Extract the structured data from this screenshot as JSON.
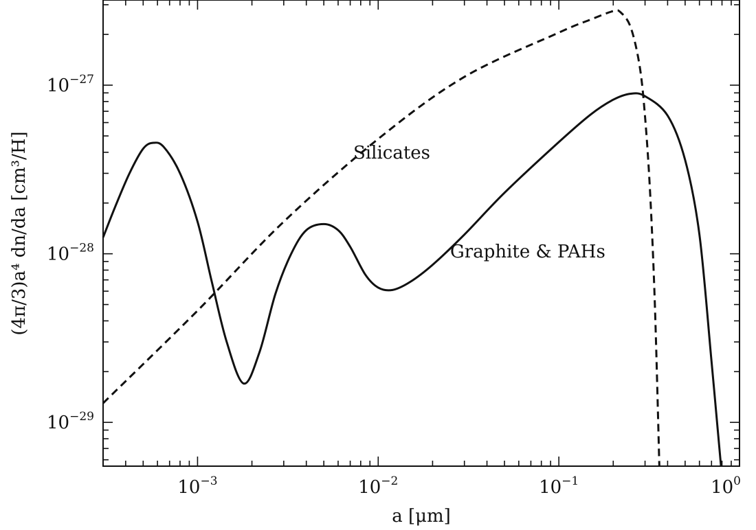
{
  "chart_data": {
    "type": "line",
    "title": "",
    "xlabel": "a [μm]",
    "ylabel": "(4π/3)a⁴ dn/da [cm³/H]",
    "xscale": "log",
    "yscale": "log",
    "xlim": [
      0.0003,
      1.0
    ],
    "ylim": [
      5.5e-30,
      3.2e-27
    ],
    "grid": false,
    "legend": "none",
    "x_tick_labels": [
      {
        "value": 0.001,
        "base": "10",
        "exp": "−3"
      },
      {
        "value": 0.01,
        "base": "10",
        "exp": "−2"
      },
      {
        "value": 0.1,
        "base": "10",
        "exp": "−1"
      },
      {
        "value": 1.0,
        "base": "10",
        "exp": "0"
      }
    ],
    "y_tick_labels": [
      {
        "value": 1e-29,
        "base": "10",
        "exp": "−29"
      },
      {
        "value": 1e-28,
        "base": "10",
        "exp": "−28"
      },
      {
        "value": 1e-27,
        "base": "10",
        "exp": "−27"
      }
    ],
    "annotations": [
      {
        "text": "Silicates",
        "series": "silicates"
      },
      {
        "text": "Graphite & PAHs",
        "series": "graphite"
      }
    ],
    "series": [
      {
        "id": "silicates",
        "style": "dashed",
        "color": "#111111",
        "points": [
          [
            0.0003,
            1.3e-29
          ],
          [
            0.001,
            4.6e-29
          ],
          [
            0.003,
            1.55e-28
          ],
          [
            0.01,
            4.8e-28
          ],
          [
            0.03,
            1.12e-27
          ],
          [
            0.1,
            2.05e-27
          ],
          [
            0.15,
            2.45e-27
          ],
          [
            0.2,
            2.75e-27
          ],
          [
            0.22,
            2.7e-27
          ],
          [
            0.25,
            2.2e-27
          ],
          [
            0.28,
            1.3e-27
          ],
          [
            0.3,
            6.5e-28
          ],
          [
            0.32,
            2.3e-28
          ],
          [
            0.34,
            5e-29
          ],
          [
            0.36,
            5.5e-30
          ]
        ]
      },
      {
        "id": "graphite",
        "style": "solid",
        "color": "#111111",
        "points": [
          [
            0.0003,
            1.25e-28
          ],
          [
            0.00035,
            1.9e-28
          ],
          [
            0.00042,
            3e-28
          ],
          [
            0.0005,
            4.2e-28
          ],
          [
            0.00057,
            4.55e-28
          ],
          [
            0.00065,
            4.3e-28
          ],
          [
            0.0008,
            3e-28
          ],
          [
            0.001,
            1.55e-28
          ],
          [
            0.0012,
            6.8e-29
          ],
          [
            0.00145,
            3e-29
          ],
          [
            0.0018,
            1.7e-29
          ],
          [
            0.0022,
            2.6e-29
          ],
          [
            0.0027,
            5.8e-29
          ],
          [
            0.0033,
            1e-28
          ],
          [
            0.004,
            1.38e-28
          ],
          [
            0.005,
            1.5e-28
          ],
          [
            0.006,
            1.38e-28
          ],
          [
            0.007,
            1.1e-28
          ],
          [
            0.0085,
            7.5e-29
          ],
          [
            0.01,
            6.3e-29
          ],
          [
            0.012,
            6.1e-29
          ],
          [
            0.015,
            6.8e-29
          ],
          [
            0.02,
            8.6e-29
          ],
          [
            0.03,
            1.3e-28
          ],
          [
            0.05,
            2.3e-28
          ],
          [
            0.1,
            4.6e-28
          ],
          [
            0.15,
            6.7e-28
          ],
          [
            0.2,
            8.2e-28
          ],
          [
            0.25,
            8.9e-28
          ],
          [
            0.3,
            8.6e-28
          ],
          [
            0.4,
            6.6e-28
          ],
          [
            0.5,
            3.6e-28
          ],
          [
            0.6,
            1.3e-28
          ],
          [
            0.7,
            2.3e-29
          ],
          [
            0.79,
            5.5e-30
          ]
        ]
      }
    ]
  }
}
